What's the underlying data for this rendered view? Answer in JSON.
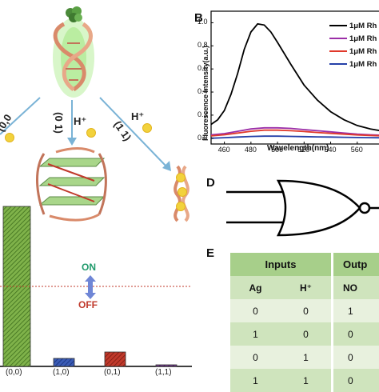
{
  "panels": {
    "b": "B",
    "d": "D",
    "e": "E"
  },
  "panel_a": {
    "arrow_labels": {
      "left": "(0,0",
      "middle_code": "(0 1)",
      "middle_ion": "H⁺",
      "right_ion": "H⁺",
      "right_code": "(1 1)"
    },
    "colors": {
      "dna_strand": "#d98a6a",
      "glow": "#9be37a",
      "ag_sphere": "#f2d23c",
      "arrow": "#7ab3d6"
    }
  },
  "chart_data": [
    {
      "type": "line",
      "xlabel": "Wavelength(nm)",
      "ylabel": "Fluorescence Intensity(a.u.)",
      "x_ticks": [
        "460",
        "480",
        "500",
        "520",
        "540",
        "560"
      ],
      "y_ticks": [
        "0.0",
        "0.2",
        "0.4",
        "0.6",
        "0.8",
        "1.0"
      ],
      "xlim": [
        450,
        580
      ],
      "ylim": [
        -0.05,
        1.1
      ],
      "legend_position": "top-right",
      "series": [
        {
          "name": "1μM Rh",
          "color": "#000000",
          "x": [
            450,
            455,
            460,
            465,
            470,
            475,
            480,
            485,
            490,
            495,
            500,
            510,
            520,
            530,
            540,
            550,
            560,
            570,
            580
          ],
          "y": [
            0.12,
            0.16,
            0.24,
            0.38,
            0.56,
            0.77,
            0.92,
            0.99,
            0.98,
            0.92,
            0.83,
            0.64,
            0.46,
            0.33,
            0.23,
            0.16,
            0.11,
            0.08,
            0.06
          ]
        },
        {
          "name": "1μM Rh",
          "color": "#9b2fa8",
          "x": [
            450,
            460,
            470,
            480,
            490,
            500,
            510,
            520,
            530,
            540,
            550,
            560,
            570,
            580
          ],
          "y": [
            0.03,
            0.04,
            0.06,
            0.08,
            0.09,
            0.09,
            0.085,
            0.075,
            0.065,
            0.055,
            0.045,
            0.035,
            0.03,
            0.025
          ]
        },
        {
          "name": "1μM Rh",
          "color": "#e0392b",
          "x": [
            450,
            460,
            470,
            480,
            490,
            500,
            510,
            520,
            530,
            540,
            550,
            560,
            570,
            580
          ],
          "y": [
            0.02,
            0.03,
            0.045,
            0.06,
            0.07,
            0.07,
            0.065,
            0.058,
            0.05,
            0.042,
            0.035,
            0.028,
            0.024,
            0.02
          ]
        },
        {
          "name": "1μM Rh",
          "color": "#2540a8",
          "x": [
            450,
            460,
            470,
            480,
            490,
            500,
            510,
            520,
            530,
            540,
            550,
            560,
            570,
            580
          ],
          "y": [
            0.0,
            0.005,
            0.01,
            0.015,
            0.018,
            0.018,
            0.016,
            0.014,
            0.012,
            0.01,
            0.008,
            0.006,
            0.005,
            0.004
          ]
        }
      ]
    },
    {
      "type": "bar",
      "categories": [
        "(0,0)",
        "(1,0)",
        "(0,1)",
        "(1,1)"
      ],
      "values": [
        1.0,
        0.05,
        0.09,
        0.01
      ],
      "colors": [
        "#7fb24a",
        "#3a5bb5",
        "#c0392b",
        "#7a3a96"
      ],
      "threshold": 0.5,
      "threshold_color": "#c0392b",
      "on_label": "ON",
      "off_label": "OFF",
      "on_color": "#1f9a6b",
      "off_color": "#c0392b"
    }
  ],
  "panel_e": {
    "header_inputs": "Inputs",
    "header_output": "Outp",
    "col_headers": [
      "Ag",
      "H⁺",
      "NO"
    ],
    "rows": [
      [
        "0",
        "0",
        "1"
      ],
      [
        "1",
        "0",
        "0"
      ],
      [
        "0",
        "1",
        "0"
      ],
      [
        "1",
        "1",
        "0"
      ]
    ],
    "colors": {
      "header": "#a7cf8a",
      "row_light": "#e8f1de",
      "row_dark": "#cfe4bd",
      "accent": "#6aa84f"
    }
  }
}
